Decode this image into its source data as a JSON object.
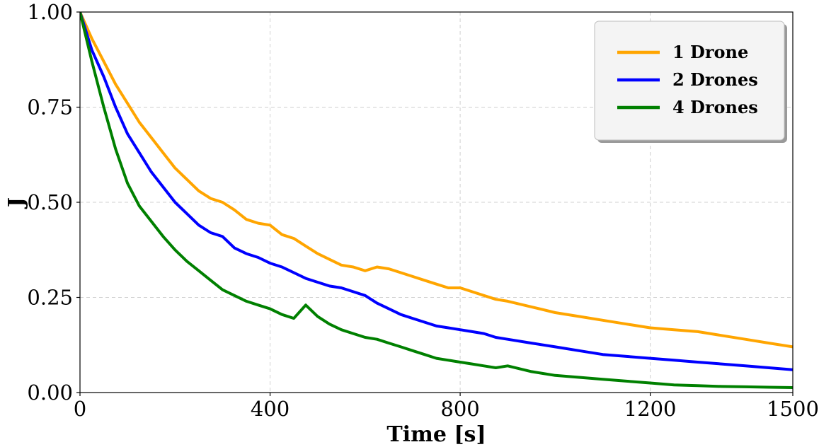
{
  "chart_data": {
    "type": "line",
    "title": "",
    "xlabel": "Time [s]",
    "ylabel": "J",
    "xlim": [
      0,
      1500
    ],
    "ylim": [
      0,
      1
    ],
    "x_ticks": [
      0,
      400,
      800,
      1200,
      1500
    ],
    "x_tick_labels": [
      "0",
      "400",
      "800",
      "1200",
      "1500"
    ],
    "y_ticks": [
      0,
      0.25,
      0.5,
      0.75,
      1.0
    ],
    "y_tick_labels": [
      "0.00",
      "0.25",
      "0.50",
      "0.75",
      "1.00"
    ],
    "grid": true,
    "legend_position": "top-right",
    "series": [
      {
        "name": "1 Drone",
        "color": "#FFA500",
        "x": [
          0,
          25,
          50,
          75,
          100,
          125,
          150,
          175,
          200,
          225,
          250,
          275,
          300,
          325,
          350,
          375,
          400,
          425,
          450,
          475,
          500,
          525,
          550,
          575,
          600,
          625,
          650,
          675,
          700,
          725,
          750,
          775,
          800,
          825,
          850,
          875,
          900,
          950,
          1000,
          1050,
          1100,
          1150,
          1200,
          1250,
          1300,
          1350,
          1400,
          1450,
          1500
        ],
        "y": [
          1.0,
          0.93,
          0.87,
          0.81,
          0.76,
          0.71,
          0.67,
          0.63,
          0.59,
          0.56,
          0.53,
          0.51,
          0.5,
          0.48,
          0.455,
          0.445,
          0.44,
          0.415,
          0.405,
          0.385,
          0.365,
          0.35,
          0.335,
          0.33,
          0.32,
          0.33,
          0.325,
          0.315,
          0.305,
          0.295,
          0.285,
          0.275,
          0.275,
          0.265,
          0.255,
          0.245,
          0.24,
          0.225,
          0.21,
          0.2,
          0.19,
          0.18,
          0.17,
          0.165,
          0.16,
          0.15,
          0.14,
          0.13,
          0.12
        ]
      },
      {
        "name": "2 Drones",
        "color": "#0000FF",
        "x": [
          0,
          25,
          50,
          75,
          100,
          125,
          150,
          175,
          200,
          225,
          250,
          275,
          300,
          325,
          350,
          375,
          400,
          425,
          450,
          475,
          500,
          525,
          550,
          575,
          600,
          625,
          650,
          675,
          700,
          725,
          750,
          775,
          800,
          825,
          850,
          875,
          900,
          950,
          1000,
          1050,
          1100,
          1150,
          1200,
          1250,
          1300,
          1350,
          1400,
          1450,
          1500
        ],
        "y": [
          1.0,
          0.9,
          0.83,
          0.75,
          0.68,
          0.63,
          0.58,
          0.54,
          0.5,
          0.47,
          0.44,
          0.42,
          0.41,
          0.38,
          0.365,
          0.355,
          0.34,
          0.33,
          0.315,
          0.3,
          0.29,
          0.28,
          0.275,
          0.265,
          0.255,
          0.235,
          0.22,
          0.205,
          0.195,
          0.185,
          0.175,
          0.17,
          0.165,
          0.16,
          0.155,
          0.145,
          0.14,
          0.13,
          0.12,
          0.11,
          0.1,
          0.095,
          0.09,
          0.085,
          0.08,
          0.075,
          0.07,
          0.065,
          0.06
        ]
      },
      {
        "name": "4 Drones",
        "color": "#008000",
        "x": [
          0,
          25,
          50,
          75,
          100,
          125,
          150,
          175,
          200,
          225,
          250,
          275,
          300,
          325,
          350,
          375,
          400,
          425,
          450,
          475,
          500,
          525,
          550,
          575,
          600,
          625,
          650,
          675,
          700,
          725,
          750,
          775,
          800,
          825,
          850,
          875,
          900,
          950,
          1000,
          1050,
          1100,
          1150,
          1200,
          1250,
          1300,
          1350,
          1400,
          1450,
          1500
        ],
        "y": [
          1.0,
          0.87,
          0.75,
          0.64,
          0.55,
          0.49,
          0.45,
          0.41,
          0.375,
          0.345,
          0.32,
          0.295,
          0.27,
          0.255,
          0.24,
          0.23,
          0.22,
          0.205,
          0.195,
          0.23,
          0.2,
          0.18,
          0.165,
          0.155,
          0.145,
          0.14,
          0.13,
          0.12,
          0.11,
          0.1,
          0.09,
          0.085,
          0.08,
          0.075,
          0.07,
          0.065,
          0.07,
          0.055,
          0.045,
          0.04,
          0.035,
          0.03,
          0.025,
          0.02,
          0.018,
          0.016,
          0.015,
          0.014,
          0.013
        ]
      }
    ]
  }
}
